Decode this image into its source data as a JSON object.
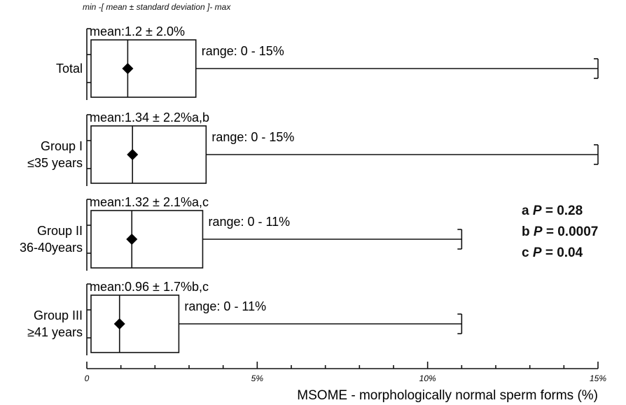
{
  "caption": "min -[ mean ± standard deviation ]- max",
  "chart_data": {
    "type": "boxplot",
    "xlabel": "MSOME - morphologically normal sperm forms (%)",
    "xlim": [
      0,
      15
    ],
    "xticks": [
      0,
      5,
      10,
      15
    ],
    "xtick_labels": [
      "0",
      "5%",
      "10%",
      "15%"
    ],
    "grid": false,
    "groups": [
      {
        "label_lines": [
          "Total"
        ],
        "mean": 1.2,
        "sd": 2.0,
        "min": 0,
        "max": 15,
        "box_max": 3.2,
        "mean_label": "mean:1.2 ± 2.0%",
        "range_label": "range: 0 - 15%"
      },
      {
        "label_lines": [
          "Group I",
          "≤35 years"
        ],
        "mean": 1.34,
        "sd": 2.2,
        "min": 0,
        "max": 15,
        "box_max": 3.5,
        "mean_label": "mean:1.34 ± 2.2%a,b",
        "range_label": "range: 0 - 15%"
      },
      {
        "label_lines": [
          "Group II",
          "36-40years"
        ],
        "mean": 1.32,
        "sd": 2.1,
        "min": 0,
        "max": 11,
        "box_max": 3.4,
        "mean_label": "mean:1.32 ± 2.1%a,c",
        "range_label": "range: 0 - 11%"
      },
      {
        "label_lines": [
          "Group III",
          "≥41 years"
        ],
        "mean": 0.96,
        "sd": 1.7,
        "min": 0,
        "max": 11,
        "box_max": 2.7,
        "mean_label": "mean:0.96 ± 1.7%b,c",
        "range_label": "range: 0 - 11%"
      }
    ]
  },
  "stats": [
    {
      "letter": "a",
      "p": "P",
      "value": "= 0.28"
    },
    {
      "letter": "b",
      "p": "P",
      "value": "= 0.0007"
    },
    {
      "letter": "c",
      "p": "P",
      "value": "= 0.04"
    }
  ]
}
